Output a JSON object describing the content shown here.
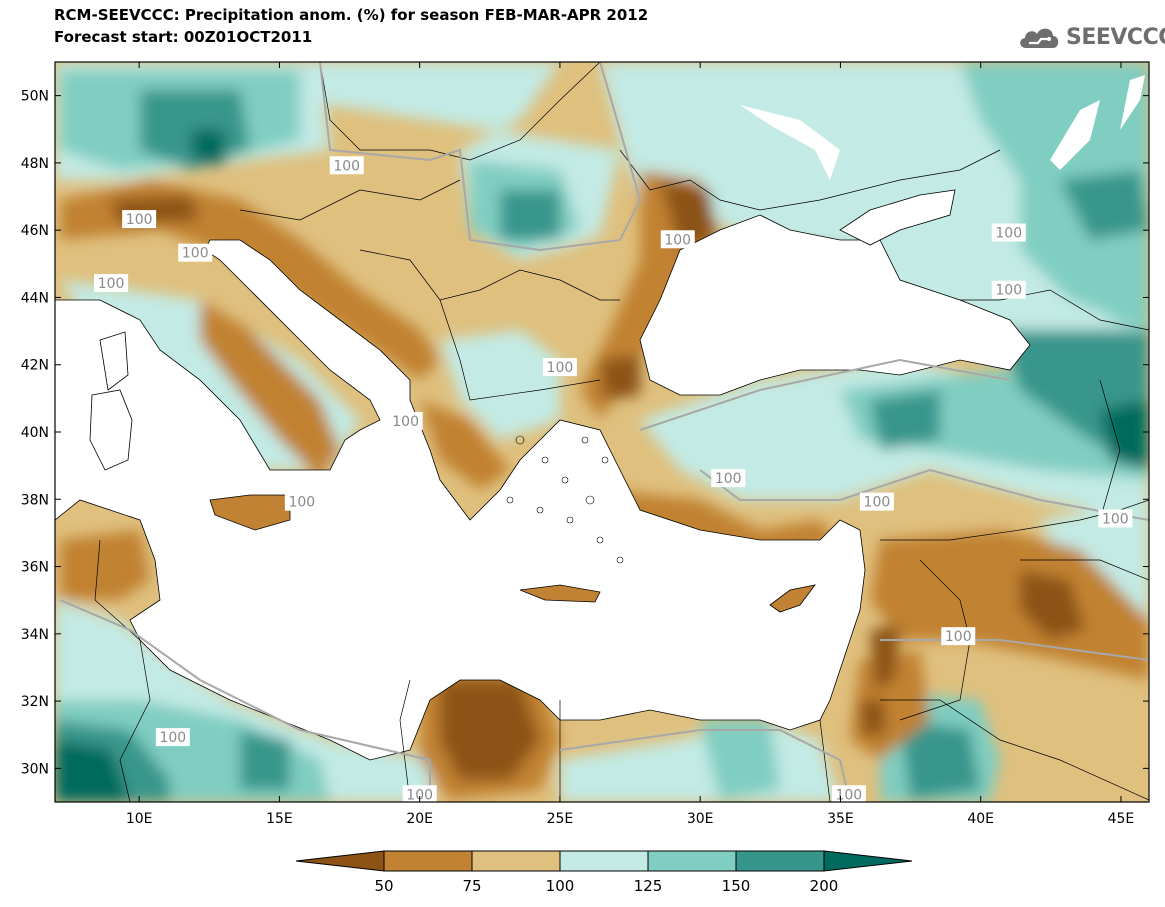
{
  "header": {
    "title_line1": "RCM-SEEVCCC: Precipitation anom. (%) for season FEB-MAR-APR 2012",
    "title_line2": "Forecast start: 00Z01OCT2011",
    "logo_text": "SEEVCCC"
  },
  "map": {
    "lon_range": [
      7,
      46
    ],
    "lat_range": [
      29,
      51
    ],
    "lat_ticks": [
      "50N",
      "48N",
      "46N",
      "44N",
      "42N",
      "40N",
      "38N",
      "36N",
      "34N",
      "32N",
      "30N"
    ],
    "lon_ticks": [
      "10E",
      "15E",
      "20E",
      "25E",
      "30E",
      "35E",
      "40E",
      "45E"
    ],
    "contour_label": "100",
    "colors": {
      "below_50": "#8c5314",
      "50_75": "#c18233",
      "75_100": "#dfc07e",
      "100_125": "#c3eae4",
      "125_150": "#80cdc1",
      "150_200": "#37968c",
      "above_200": "#016a5e",
      "sea": "#ffffff"
    }
  },
  "colorbar": {
    "labels": [
      "50",
      "75",
      "100",
      "125",
      "150",
      "200"
    ],
    "colors": [
      "#8c5314",
      "#c18233",
      "#dfc07e",
      "#c3eae4",
      "#80cdc1",
      "#37968c",
      "#016a5e"
    ]
  }
}
